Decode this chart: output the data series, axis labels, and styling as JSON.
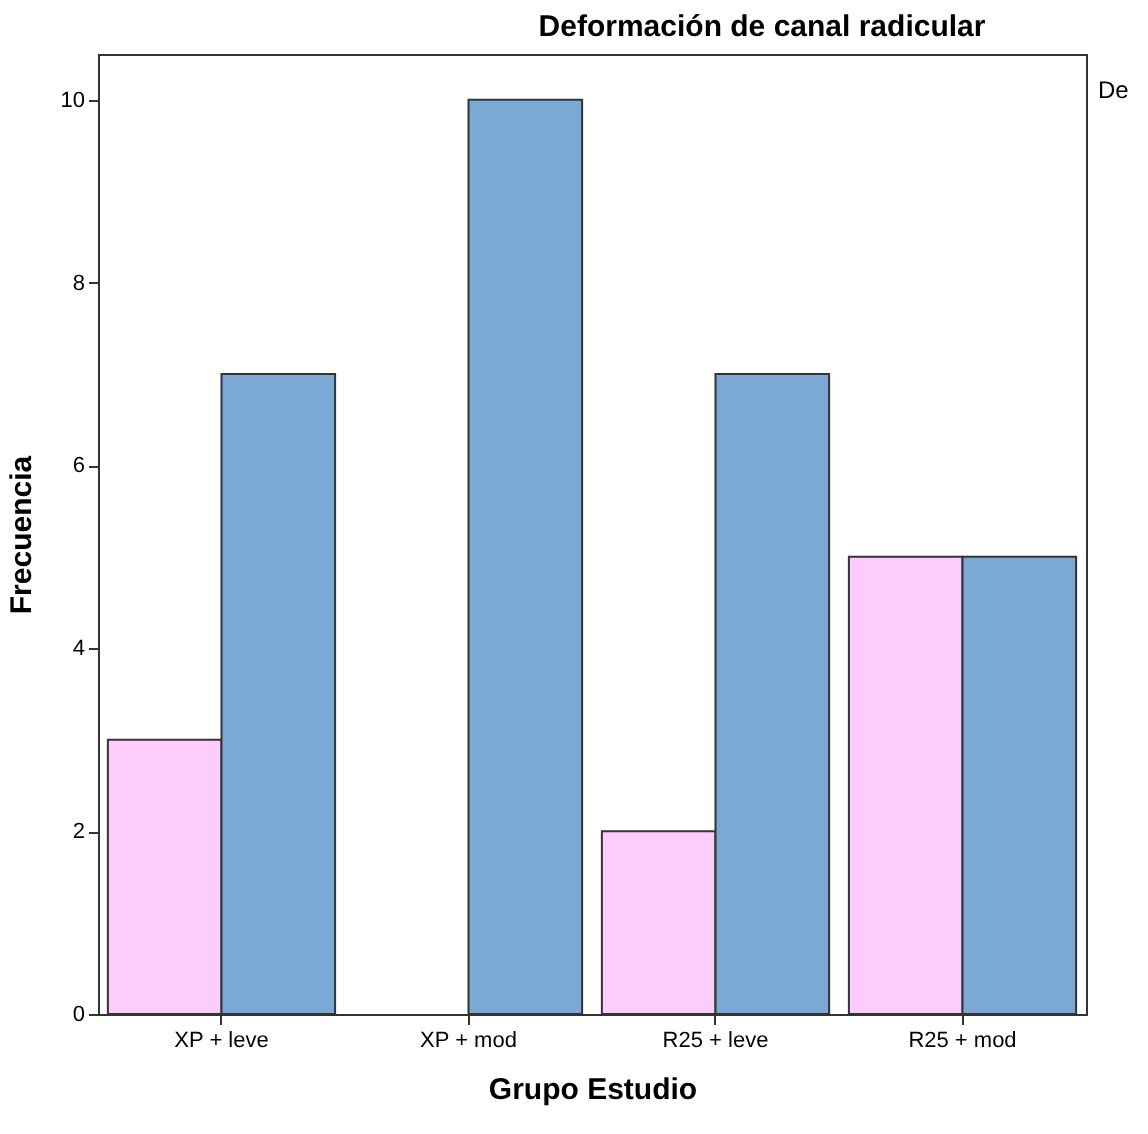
{
  "chart_data": {
    "type": "bar",
    "title": "Deformación de canal radicular",
    "xlabel": "Grupo Estudio",
    "ylabel": "Frecuencia",
    "categories": [
      "XP + leve",
      "XP + mod",
      "R25 + leve",
      "R25 + mod"
    ],
    "series": [
      {
        "color": "#fcccfc",
        "values": [
          3,
          0,
          2,
          5
        ]
      },
      {
        "color": "#7aa9d6",
        "values": [
          7,
          10,
          7,
          5
        ]
      }
    ],
    "ylim": [
      0,
      10.5
    ],
    "yticks": [
      0,
      2,
      4,
      6,
      8,
      10
    ],
    "grid": false,
    "annotations": [
      "De"
    ]
  }
}
